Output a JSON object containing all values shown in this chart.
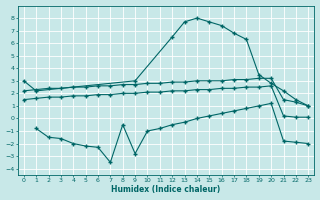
{
  "xlabel": "Humidex (Indice chaleur)",
  "background_color": "#c8e8e8",
  "grid_color": "#ffffff",
  "line_color": "#006666",
  "xlim": [
    -0.5,
    23.5
  ],
  "ylim": [
    -4.5,
    9.0
  ],
  "xticks": [
    0,
    1,
    2,
    3,
    4,
    5,
    6,
    7,
    8,
    9,
    10,
    11,
    12,
    13,
    14,
    15,
    16,
    17,
    18,
    19,
    20,
    21,
    22,
    23
  ],
  "yticks": [
    -4,
    -3,
    -2,
    -1,
    0,
    1,
    2,
    3,
    4,
    5,
    6,
    7,
    8
  ],
  "curve1_x": [
    0,
    1,
    9,
    12,
    13,
    14,
    15,
    16,
    17,
    18,
    19,
    20,
    21,
    22,
    23
  ],
  "curve1_y": [
    3.0,
    2.2,
    3.0,
    6.5,
    7.7,
    8.0,
    7.7,
    7.4,
    6.8,
    6.3,
    3.5,
    2.8,
    2.2,
    1.5,
    1.0
  ],
  "curve2_x": [
    0,
    1,
    2,
    3,
    4,
    5,
    6,
    7,
    8,
    9,
    10,
    11,
    12,
    13,
    14,
    15,
    16,
    17,
    18,
    19,
    20,
    21,
    22,
    23
  ],
  "curve2_y": [
    2.2,
    2.3,
    2.4,
    2.4,
    2.5,
    2.5,
    2.6,
    2.6,
    2.7,
    2.7,
    2.8,
    2.8,
    2.9,
    2.9,
    3.0,
    3.0,
    3.0,
    3.1,
    3.1,
    3.2,
    3.2,
    1.5,
    1.3,
    1.0
  ],
  "curve3_x": [
    0,
    1,
    2,
    3,
    4,
    5,
    6,
    7,
    8,
    9,
    10,
    11,
    12,
    13,
    14,
    15,
    16,
    17,
    18,
    19,
    20,
    21,
    22,
    23
  ],
  "curve3_y": [
    1.5,
    1.6,
    1.7,
    1.7,
    1.8,
    1.8,
    1.9,
    1.9,
    2.0,
    2.0,
    2.1,
    2.1,
    2.2,
    2.2,
    2.3,
    2.3,
    2.4,
    2.4,
    2.5,
    2.5,
    2.6,
    0.2,
    0.1,
    0.1
  ],
  "curve4_x": [
    1,
    2,
    3,
    4,
    5,
    6,
    7,
    8,
    9,
    10,
    11,
    12,
    13,
    14,
    15,
    16,
    17,
    18,
    19,
    20,
    21,
    22,
    23
  ],
  "curve4_y": [
    -0.8,
    -1.5,
    -1.6,
    -2.0,
    -2.2,
    -2.3,
    -3.5,
    -0.5,
    -2.8,
    -1.0,
    -0.8,
    -0.5,
    -0.3,
    0.0,
    0.2,
    0.4,
    0.6,
    0.8,
    1.0,
    1.2,
    -1.8,
    -1.9,
    -2.0
  ]
}
